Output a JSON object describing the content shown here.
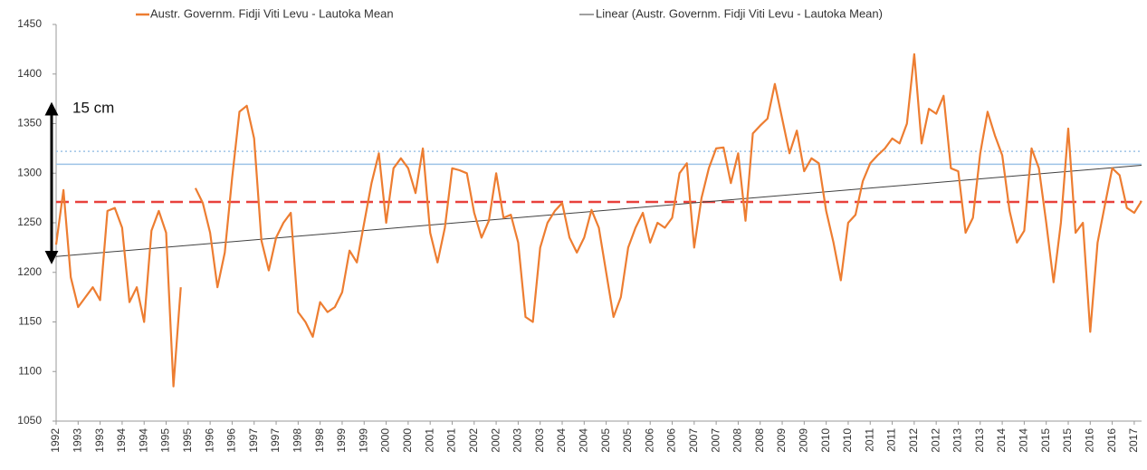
{
  "chart_data": {
    "type": "line",
    "categories": [
      "1992",
      null,
      null,
      "1993",
      null,
      null,
      "1993",
      null,
      null,
      "1994",
      null,
      null,
      "1994",
      null,
      null,
      "1995",
      null,
      null,
      "1995",
      null,
      null,
      "1996",
      null,
      null,
      "1996",
      null,
      null,
      "1997",
      null,
      null,
      "1997",
      null,
      null,
      "1998",
      null,
      null,
      "1998",
      null,
      null,
      "1999",
      null,
      null,
      "1999",
      null,
      null,
      "2000",
      null,
      null,
      "2000",
      null,
      null,
      "2001",
      null,
      null,
      "2001",
      null,
      null,
      "2002",
      null,
      null,
      "2002",
      null,
      null,
      "2003",
      null,
      null,
      "2003",
      null,
      null,
      "2004",
      null,
      null,
      "2004",
      null,
      null,
      "2005",
      null,
      null,
      "2005",
      null,
      null,
      "2006",
      null,
      null,
      "2006",
      null,
      null,
      "2007",
      null,
      null,
      "2007",
      null,
      null,
      "2008",
      null,
      null,
      "2008",
      null,
      null,
      "2009",
      null,
      null,
      "2009",
      null,
      null,
      "2010",
      null,
      null,
      "2010",
      null,
      null,
      "2011",
      null,
      null,
      "2011",
      null,
      null,
      "2012",
      null,
      null,
      "2012",
      null,
      null,
      "2013",
      null,
      null,
      "2013",
      null,
      null,
      "2014",
      null,
      null,
      "2014",
      null,
      null,
      "2015",
      null,
      null,
      "2015",
      null,
      null,
      "2016",
      null,
      null,
      "2016",
      null,
      null,
      "2017",
      null
    ],
    "series": [
      {
        "name": "Austr. Governm. Fidji Viti Levu - Lautoka Mean",
        "color": "#ed7d31",
        "values": [
          1228,
          1283,
          1195,
          1165,
          1175,
          1185,
          1172,
          1262,
          1265,
          1245,
          1170,
          1185,
          1150,
          1242,
          1262,
          1240,
          1085,
          1185,
          null,
          1285,
          1270,
          1240,
          1185,
          1220,
          1295,
          1362,
          1368,
          1335,
          1232,
          1202,
          1235,
          1250,
          1260,
          1160,
          1150,
          1135,
          1170,
          1160,
          1165,
          1180,
          1222,
          1210,
          1250,
          1290,
          1320,
          1250,
          1305,
          1315,
          1305,
          1280,
          1325,
          1240,
          1210,
          1245,
          1305,
          1303,
          1300,
          1260,
          1235,
          1252,
          1300,
          1255,
          1258,
          1230,
          1155,
          1150,
          1225,
          1250,
          1262,
          1270,
          1235,
          1220,
          1235,
          1263,
          1245,
          1200,
          1155,
          1175,
          1225,
          1245,
          1260,
          1230,
          1250,
          1245,
          1255,
          1300,
          1310,
          1225,
          1275,
          1305,
          1325,
          1326,
          1290,
          1320,
          1252,
          1340,
          1348,
          1355,
          1390,
          1355,
          1320,
          1343,
          1302,
          1315,
          1310,
          1262,
          1230,
          1192,
          1250,
          1258,
          1292,
          1310,
          1318,
          1325,
          1335,
          1330,
          1350,
          1420,
          1330,
          1365,
          1360,
          1378,
          1305,
          1302,
          1240,
          1255,
          1320,
          1362,
          1338,
          1318,
          1262,
          1230,
          1242,
          1325,
          1305,
          1250,
          1190,
          1250,
          1345,
          1240,
          1250,
          1140,
          1230,
          1268,
          1305,
          1298,
          1265,
          1260,
          1272
        ]
      }
    ],
    "trendline": {
      "name": "Linear (Austr. Governm. Fidji Viti Levu - Lautoka Mean)",
      "color": "#404040",
      "values": [
        1216,
        1308
      ]
    },
    "reference_lines": [
      {
        "value": 1322,
        "color": "#9dc3e6",
        "style": "dotted"
      },
      {
        "value": 1309,
        "color": "#9dc3e6",
        "style": "solid"
      },
      {
        "value": 1271,
        "color": "#e8413c",
        "style": "dashed"
      }
    ],
    "annotation": {
      "text": "15 cm",
      "from": 1365,
      "to": 1215
    },
    "ylim": [
      1050,
      1450
    ],
    "yticks": [
      1050,
      1100,
      1150,
      1200,
      1250,
      1300,
      1350,
      1400,
      1450
    ]
  }
}
